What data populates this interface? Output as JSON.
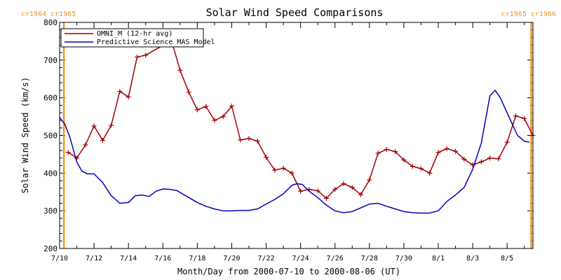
{
  "chart_data": {
    "type": "line",
    "title": "Solar Wind Speed Comparisons",
    "xlabel": "Month/Day from 2000-07-10 to 2000-08-06 (UT)",
    "ylabel": "Solar Wind Speed (km/s)",
    "xlim_days": [
      0,
      27.5
    ],
    "ylim": [
      200,
      800
    ],
    "y_ticks": [
      200,
      300,
      400,
      500,
      600,
      700,
      800
    ],
    "x_tick_days": [
      0,
      2,
      4,
      6,
      8,
      10,
      12,
      14,
      16,
      18,
      20,
      22,
      24,
      26
    ],
    "x_tick_labels": [
      "7/10",
      "7/12",
      "7/14",
      "7/16",
      "7/18",
      "7/20",
      "7/22",
      "7/24",
      "7/26",
      "7/28",
      "7/30",
      "8/1",
      "8/3",
      "8/5"
    ],
    "rotation_markers": [
      {
        "day": 0.25,
        "label": "cr1964 cr1965",
        "color": "#f7941d"
      },
      {
        "day": 27.4,
        "label": "cr1965 cr1966",
        "color": "#f7941d"
      }
    ],
    "series": [
      {
        "name": "OMNI_M (12-hr avg)",
        "color": "#a00000",
        "marker": "+",
        "x": [
          0.5,
          1.0,
          1.5,
          2.0,
          2.5,
          3.0,
          3.5,
          4.0,
          4.5,
          5.0,
          6.5,
          7.0,
          7.5,
          8.0,
          8.5,
          9.0,
          9.5,
          10.0,
          10.5,
          11.0,
          11.5,
          12.0,
          12.5,
          13.0,
          13.5,
          14.0,
          14.5,
          15.0,
          15.5,
          16.0,
          16.5,
          17.0,
          17.5,
          18.0,
          18.5,
          19.0,
          19.5,
          20.0,
          20.5,
          21.0,
          21.5,
          22.0,
          22.5,
          23.0,
          23.5,
          24.0,
          24.5,
          25.0,
          25.5,
          26.0,
          26.5,
          27.0,
          27.5
        ],
        "y": [
          455,
          440,
          475,
          525,
          487,
          527,
          617,
          602,
          708,
          713,
          752,
          673,
          615,
          568,
          577,
          540,
          550,
          578,
          488,
          492,
          485,
          442,
          408,
          413,
          400,
          352,
          357,
          353,
          333,
          357,
          372,
          362,
          343,
          382,
          453,
          463,
          457,
          435,
          418,
          412,
          400,
          455,
          465,
          458,
          437,
          422,
          430,
          440,
          438,
          482,
          552,
          545,
          500
        ]
      },
      {
        "name": "Predictive Science MAS Model",
        "color": "#0000c0",
        "marker": "none",
        "x": [
          0.0,
          0.3,
          0.6,
          1.0,
          1.3,
          1.6,
          2.0,
          2.5,
          3.0,
          3.5,
          4.0,
          4.4,
          4.8,
          5.2,
          5.6,
          6.0,
          6.4,
          6.8,
          7.4,
          8.0,
          8.5,
          9.0,
          9.5,
          10.0,
          10.5,
          11.0,
          11.5,
          12.0,
          12.5,
          13.0,
          13.5,
          13.8,
          14.1,
          14.5,
          15.0,
          15.5,
          16.0,
          16.5,
          17.0,
          17.5,
          18.0,
          18.5,
          19.0,
          19.5,
          20.0,
          20.5,
          21.0,
          21.5,
          22.0,
          22.5,
          23.0,
          23.5,
          24.0,
          24.5,
          25.0,
          25.3,
          25.6,
          26.0,
          26.3,
          26.6,
          27.0,
          27.3
        ],
        "y": [
          548,
          530,
          495,
          430,
          405,
          398,
          398,
          375,
          340,
          320,
          322,
          340,
          342,
          338,
          352,
          358,
          357,
          354,
          338,
          322,
          312,
          305,
          300,
          300,
          301,
          301,
          305,
          318,
          330,
          345,
          368,
          372,
          370,
          352,
          335,
          315,
          300,
          295,
          298,
          308,
          318,
          320,
          312,
          305,
          298,
          295,
          294,
          294,
          300,
          325,
          342,
          362,
          410,
          480,
          605,
          620,
          600,
          560,
          530,
          500,
          485,
          482
        ]
      }
    ]
  }
}
